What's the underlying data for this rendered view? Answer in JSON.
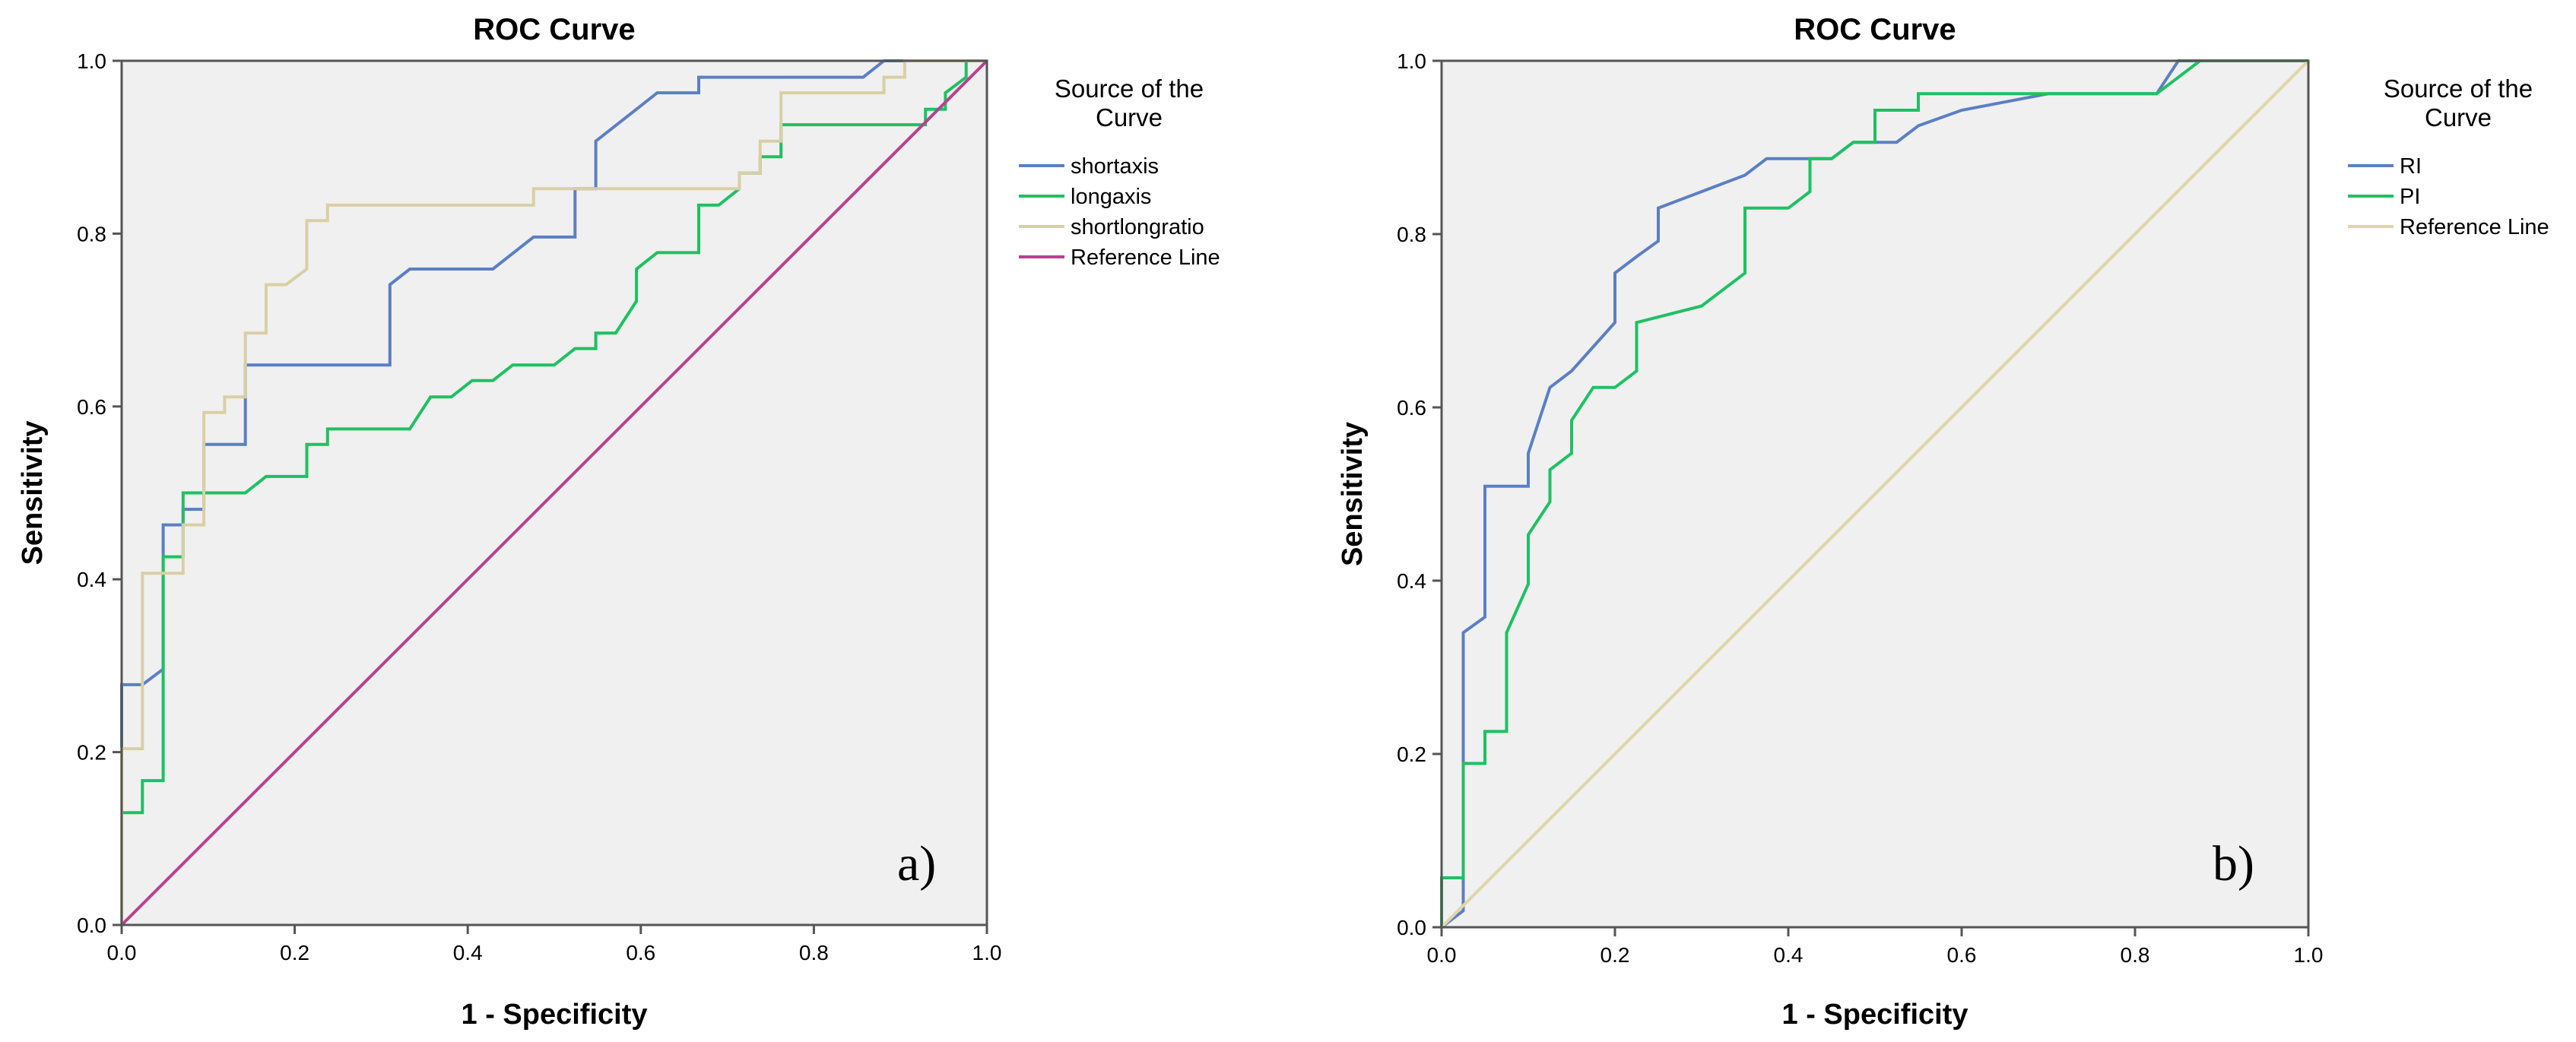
{
  "chart_data": [
    {
      "type": "line",
      "title": "ROC Curve",
      "xlabel": "1 - Specificity",
      "ylabel": "Sensitivity",
      "xlim": [
        0,
        1
      ],
      "ylim": [
        0,
        1
      ],
      "xticks": [
        "0.0",
        "0.2",
        "0.4",
        "0.6",
        "0.8",
        "1.0"
      ],
      "yticks": [
        "0.0",
        "0.2",
        "0.4",
        "0.6",
        "0.8",
        "1.0"
      ],
      "legend_title": "Source of the Curve",
      "legend_position": "right",
      "panel_label": "a)",
      "series": [
        {
          "name": "shortaxis",
          "color": "#5b7fc4",
          "step": true,
          "points": [
            [
              0,
              0
            ],
            [
              0,
              0.278
            ],
            [
              0.024,
              0.278
            ],
            [
              0.048,
              0.296
            ],
            [
              0.048,
              0.463
            ],
            [
              0.071,
              0.463
            ],
            [
              0.071,
              0.481
            ],
            [
              0.095,
              0.481
            ],
            [
              0.095,
              0.556
            ],
            [
              0.143,
              0.556
            ],
            [
              0.143,
              0.648
            ],
            [
              0.31,
              0.648
            ],
            [
              0.31,
              0.741
            ],
            [
              0.333,
              0.759
            ],
            [
              0.405,
              0.759
            ],
            [
              0.429,
              0.759
            ],
            [
              0.476,
              0.796
            ],
            [
              0.524,
              0.796
            ],
            [
              0.524,
              0.852
            ],
            [
              0.548,
              0.852
            ],
            [
              0.548,
              0.907
            ],
            [
              0.595,
              0.944
            ],
            [
              0.619,
              0.963
            ],
            [
              0.667,
              0.963
            ],
            [
              0.667,
              0.981
            ],
            [
              0.857,
              0.981
            ],
            [
              0.881,
              1.0
            ],
            [
              1.0,
              1.0
            ]
          ]
        },
        {
          "name": "longaxis",
          "color": "#1ec162",
          "step": true,
          "points": [
            [
              0,
              0
            ],
            [
              0,
              0.13
            ],
            [
              0.024,
              0.13
            ],
            [
              0.024,
              0.167
            ],
            [
              0.048,
              0.167
            ],
            [
              0.048,
              0.426
            ],
            [
              0.071,
              0.426
            ],
            [
              0.071,
              0.5
            ],
            [
              0.143,
              0.5
            ],
            [
              0.167,
              0.519
            ],
            [
              0.214,
              0.519
            ],
            [
              0.214,
              0.556
            ],
            [
              0.238,
              0.556
            ],
            [
              0.238,
              0.574
            ],
            [
              0.333,
              0.574
            ],
            [
              0.357,
              0.611
            ],
            [
              0.381,
              0.611
            ],
            [
              0.405,
              0.63
            ],
            [
              0.429,
              0.63
            ],
            [
              0.452,
              0.648
            ],
            [
              0.5,
              0.648
            ],
            [
              0.524,
              0.667
            ],
            [
              0.548,
              0.667
            ],
            [
              0.548,
              0.685
            ],
            [
              0.571,
              0.685
            ],
            [
              0.595,
              0.722
            ],
            [
              0.595,
              0.759
            ],
            [
              0.619,
              0.778
            ],
            [
              0.667,
              0.778
            ],
            [
              0.667,
              0.833
            ],
            [
              0.69,
              0.833
            ],
            [
              0.714,
              0.852
            ],
            [
              0.714,
              0.87
            ],
            [
              0.738,
              0.87
            ],
            [
              0.738,
              0.889
            ],
            [
              0.762,
              0.889
            ],
            [
              0.762,
              0.926
            ],
            [
              0.929,
              0.926
            ],
            [
              0.929,
              0.944
            ],
            [
              0.952,
              0.944
            ],
            [
              0.952,
              0.963
            ],
            [
              0.976,
              0.981
            ],
            [
              0.976,
              1.0
            ],
            [
              1.0,
              1.0
            ]
          ]
        },
        {
          "name": "shortlongratio",
          "color": "#d9cfa5",
          "step": true,
          "points": [
            [
              0,
              0
            ],
            [
              0,
              0.204
            ],
            [
              0.024,
              0.204
            ],
            [
              0.024,
              0.407
            ],
            [
              0.071,
              0.407
            ],
            [
              0.071,
              0.463
            ],
            [
              0.095,
              0.463
            ],
            [
              0.095,
              0.593
            ],
            [
              0.119,
              0.593
            ],
            [
              0.119,
              0.611
            ],
            [
              0.143,
              0.611
            ],
            [
              0.143,
              0.685
            ],
            [
              0.167,
              0.685
            ],
            [
              0.167,
              0.741
            ],
            [
              0.19,
              0.741
            ],
            [
              0.214,
              0.759
            ],
            [
              0.214,
              0.815
            ],
            [
              0.238,
              0.815
            ],
            [
              0.238,
              0.833
            ],
            [
              0.476,
              0.833
            ],
            [
              0.476,
              0.852
            ],
            [
              0.714,
              0.852
            ],
            [
              0.714,
              0.87
            ],
            [
              0.738,
              0.87
            ],
            [
              0.738,
              0.907
            ],
            [
              0.762,
              0.907
            ],
            [
              0.762,
              0.963
            ],
            [
              0.881,
              0.963
            ],
            [
              0.881,
              0.981
            ],
            [
              0.905,
              0.981
            ],
            [
              0.905,
              1.0
            ],
            [
              1.0,
              1.0
            ]
          ]
        },
        {
          "name": "Reference Line",
          "color": "#b8418f",
          "step": false,
          "points": [
            [
              0,
              0
            ],
            [
              1,
              1
            ]
          ]
        }
      ]
    },
    {
      "type": "line",
      "title": "ROC Curve",
      "xlabel": "1 - Specificity",
      "ylabel": "Sensitivity",
      "xlim": [
        0,
        1
      ],
      "ylim": [
        0,
        1
      ],
      "xticks": [
        "0.0",
        "0.2",
        "0.4",
        "0.6",
        "0.8",
        "1.0"
      ],
      "yticks": [
        "0.0",
        "0.2",
        "0.4",
        "0.6",
        "0.8",
        "1.0"
      ],
      "legend_title": "Source of the Curve",
      "legend_position": "right",
      "panel_label": "b)",
      "series": [
        {
          "name": "RI",
          "color": "#5b7fc4",
          "step": true,
          "points": [
            [
              0,
              0
            ],
            [
              0.025,
              0.019
            ],
            [
              0.025,
              0.34
            ],
            [
              0.05,
              0.358
            ],
            [
              0.05,
              0.509
            ],
            [
              0.1,
              0.509
            ],
            [
              0.1,
              0.547
            ],
            [
              0.125,
              0.623
            ],
            [
              0.15,
              0.642
            ],
            [
              0.2,
              0.698
            ],
            [
              0.2,
              0.755
            ],
            [
              0.225,
              0.774
            ],
            [
              0.25,
              0.792
            ],
            [
              0.25,
              0.83
            ],
            [
              0.3,
              0.849
            ],
            [
              0.35,
              0.868
            ],
            [
              0.375,
              0.887
            ],
            [
              0.425,
              0.887
            ],
            [
              0.45,
              0.887
            ],
            [
              0.475,
              0.906
            ],
            [
              0.525,
              0.906
            ],
            [
              0.55,
              0.925
            ],
            [
              0.6,
              0.943
            ],
            [
              0.7,
              0.962
            ],
            [
              0.825,
              0.962
            ],
            [
              0.85,
              1.0
            ],
            [
              1.0,
              1.0
            ]
          ]
        },
        {
          "name": "PI",
          "color": "#1ec162",
          "step": true,
          "points": [
            [
              0,
              0
            ],
            [
              0,
              0.057
            ],
            [
              0.025,
              0.057
            ],
            [
              0.025,
              0.189
            ],
            [
              0.05,
              0.189
            ],
            [
              0.05,
              0.226
            ],
            [
              0.075,
              0.226
            ],
            [
              0.075,
              0.34
            ],
            [
              0.1,
              0.396
            ],
            [
              0.1,
              0.453
            ],
            [
              0.125,
              0.491
            ],
            [
              0.125,
              0.528
            ],
            [
              0.15,
              0.547
            ],
            [
              0.15,
              0.585
            ],
            [
              0.175,
              0.623
            ],
            [
              0.2,
              0.623
            ],
            [
              0.225,
              0.642
            ],
            [
              0.225,
              0.698
            ],
            [
              0.3,
              0.717
            ],
            [
              0.35,
              0.755
            ],
            [
              0.35,
              0.83
            ],
            [
              0.4,
              0.83
            ],
            [
              0.425,
              0.849
            ],
            [
              0.425,
              0.887
            ],
            [
              0.45,
              0.887
            ],
            [
              0.475,
              0.906
            ],
            [
              0.5,
              0.906
            ],
            [
              0.5,
              0.943
            ],
            [
              0.55,
              0.943
            ],
            [
              0.55,
              0.962
            ],
            [
              0.825,
              0.962
            ],
            [
              0.875,
              1.0
            ],
            [
              1.0,
              1.0
            ]
          ]
        },
        {
          "name": "Reference Line",
          "color": "#e0d5a8",
          "step": false,
          "points": [
            [
              0,
              0
            ],
            [
              1,
              1
            ]
          ]
        }
      ]
    }
  ]
}
